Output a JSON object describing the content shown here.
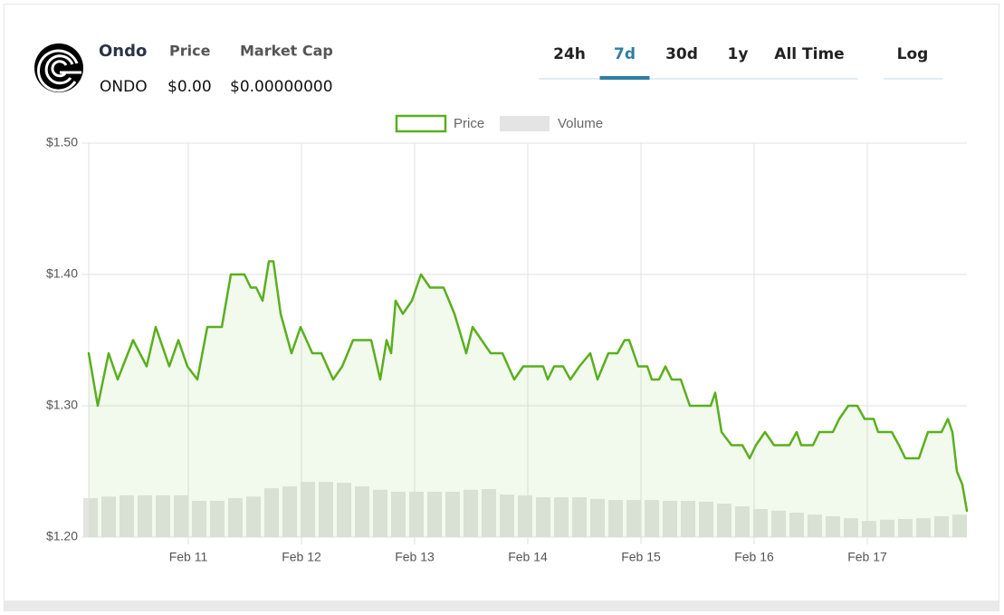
{
  "header": {
    "name": "Ondo",
    "symbol": "ONDO",
    "price_label": "Price",
    "price": "$0.00",
    "market_cap_label": "Market Cap",
    "market_cap": "$0.00000000"
  },
  "tabs": [
    "24h",
    "7d",
    "30d",
    "1y",
    "All Time"
  ],
  "active_tab": 1,
  "log_label": "Log",
  "chart_data": {
    "type": "line",
    "grid": true,
    "legend": "top",
    "xlim": [
      10.12,
      17.88
    ],
    "xticks": [
      {
        "value": 11,
        "label": "Feb 11"
      },
      {
        "value": 12,
        "label": "Feb 12"
      },
      {
        "value": 13,
        "label": "Feb 13"
      },
      {
        "value": 14,
        "label": "Feb 14"
      },
      {
        "value": 15,
        "label": "Feb 15"
      },
      {
        "value": 16,
        "label": "Feb 16"
      },
      {
        "value": 17,
        "label": "Feb 17"
      }
    ],
    "ylim": [
      1.2,
      1.5
    ],
    "yticks": [
      {
        "value": 1.2,
        "label": "$1.20"
      },
      {
        "value": 1.3,
        "label": "$1.30"
      },
      {
        "value": 1.4,
        "label": "$1.40"
      },
      {
        "value": 1.5,
        "label": "$1.50"
      }
    ],
    "y2lim": [
      0,
      100
    ],
    "series": [
      {
        "name": "Price",
        "color": "#5aaf1e",
        "x": [
          10.12,
          10.2,
          10.296,
          10.376,
          10.512,
          10.632,
          10.712,
          10.832,
          10.912,
          10.992,
          11.08,
          11.168,
          11.296,
          11.376,
          11.496,
          11.552,
          11.6,
          11.656,
          11.712,
          11.752,
          11.816,
          11.912,
          11.992,
          12.096,
          12.176,
          12.28,
          12.36,
          12.456,
          12.616,
          12.696,
          12.752,
          12.792,
          12.832,
          12.896,
          12.976,
          13.056,
          13.136,
          13.256,
          13.352,
          13.456,
          13.512,
          13.592,
          13.672,
          13.776,
          13.88,
          13.96,
          14.016,
          14.136,
          14.176,
          14.232,
          14.312,
          14.376,
          14.456,
          14.552,
          14.616,
          14.712,
          14.792,
          14.856,
          14.896,
          14.976,
          15.056,
          15.096,
          15.16,
          15.216,
          15.272,
          15.352,
          15.432,
          15.616,
          15.656,
          15.712,
          15.8,
          15.896,
          15.96,
          16.016,
          16.096,
          16.176,
          16.312,
          16.376,
          16.416,
          16.52,
          16.576,
          16.696,
          16.752,
          16.832,
          16.912,
          16.976,
          17.056,
          17.096,
          17.216,
          17.28,
          17.336,
          17.456,
          17.536,
          17.656,
          17.712,
          17.752,
          17.792,
          17.84,
          17.88
        ],
        "values": [
          1.34,
          1.3,
          1.34,
          1.32,
          1.35,
          1.33,
          1.36,
          1.33,
          1.35,
          1.33,
          1.32,
          1.36,
          1.36,
          1.4,
          1.4,
          1.39,
          1.39,
          1.38,
          1.41,
          1.41,
          1.37,
          1.34,
          1.36,
          1.34,
          1.34,
          1.32,
          1.33,
          1.35,
          1.35,
          1.32,
          1.35,
          1.34,
          1.38,
          1.37,
          1.38,
          1.4,
          1.39,
          1.39,
          1.37,
          1.34,
          1.36,
          1.35,
          1.34,
          1.34,
          1.32,
          1.33,
          1.33,
          1.33,
          1.32,
          1.33,
          1.33,
          1.32,
          1.33,
          1.34,
          1.32,
          1.34,
          1.34,
          1.35,
          1.35,
          1.33,
          1.33,
          1.32,
          1.32,
          1.33,
          1.32,
          1.32,
          1.3,
          1.3,
          1.31,
          1.28,
          1.27,
          1.27,
          1.26,
          1.27,
          1.28,
          1.27,
          1.27,
          1.28,
          1.27,
          1.27,
          1.28,
          1.28,
          1.29,
          1.3,
          1.3,
          1.29,
          1.29,
          1.28,
          1.28,
          1.27,
          1.26,
          1.26,
          1.28,
          1.28,
          1.29,
          1.28,
          1.25,
          1.24,
          1.22
        ]
      },
      {
        "name": "Volume",
        "color": "#e4e4e4",
        "type": "bar",
        "axis": "y2",
        "x": [
          10.136,
          10.296,
          10.456,
          10.616,
          10.776,
          10.936,
          11.096,
          11.256,
          11.416,
          11.576,
          11.736,
          11.896,
          12.056,
          12.216,
          12.376,
          12.536,
          12.696,
          12.856,
          13.016,
          13.176,
          13.336,
          13.496,
          13.656,
          13.816,
          13.976,
          14.136,
          14.296,
          14.456,
          14.616,
          14.776,
          14.936,
          15.096,
          15.256,
          15.416,
          15.576,
          15.736,
          15.896,
          16.056,
          16.216,
          16.376,
          16.536,
          16.696,
          16.856,
          17.016,
          17.176,
          17.336,
          17.496,
          17.656,
          17.816
        ],
        "values": [
          9.9,
          10.3,
          10.6,
          10.6,
          10.6,
          10.6,
          9.2,
          9.2,
          9.9,
          10.3,
          12.4,
          12.9,
          14.0,
          14.0,
          13.8,
          12.9,
          12.0,
          11.5,
          11.5,
          11.5,
          11.5,
          12.0,
          12.2,
          10.8,
          10.6,
          10.1,
          10.1,
          10.1,
          9.7,
          9.4,
          9.4,
          9.4,
          9.2,
          9.2,
          9.0,
          8.5,
          7.8,
          7.1,
          6.7,
          6.2,
          5.7,
          5.3,
          4.8,
          4.1,
          4.4,
          4.6,
          4.8,
          5.3,
          5.7
        ]
      }
    ]
  }
}
